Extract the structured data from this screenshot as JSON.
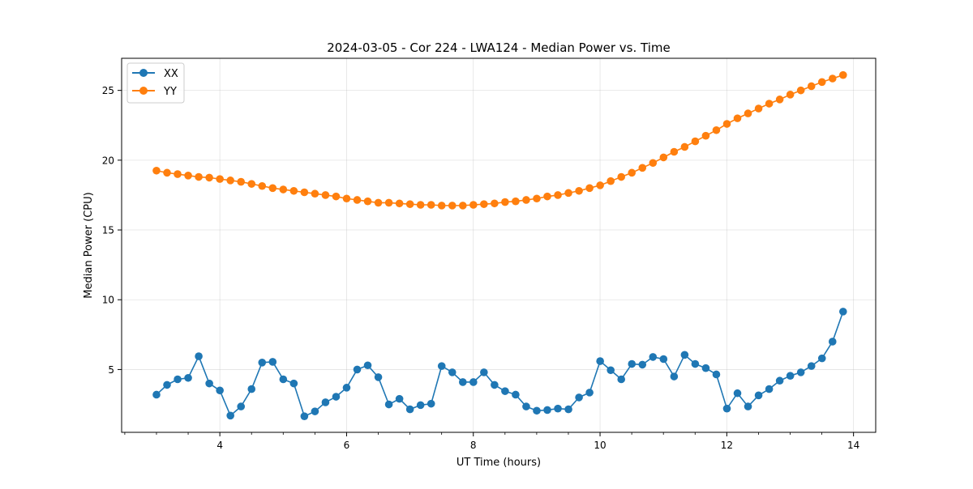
{
  "chart_data": {
    "type": "line",
    "title": "2024-03-05 - Cor 224 - LWA124 - Median Power vs. Time",
    "xlabel": "UT Time (hours)",
    "ylabel": "Median Power (CPU)",
    "xlim": [
      2.45,
      14.35
    ],
    "ylim": [
      0.5,
      27.3
    ],
    "xticks": [
      4,
      6,
      8,
      10,
      12,
      14
    ],
    "xticks_minor": [
      2.5,
      3,
      3.5,
      4.5,
      5,
      5.5,
      6.5,
      7,
      7.5,
      8.5,
      9,
      9.5,
      10.5,
      11,
      11.5,
      12.5,
      13,
      13.5
    ],
    "yticks": [
      5,
      10,
      15,
      20,
      25
    ],
    "grid": true,
    "legend_position": "upper-left",
    "x_start": 3.0,
    "x_step": 0.1667,
    "series": [
      {
        "name": "XX",
        "color": "#1f77b4",
        "values": [
          3.2,
          3.9,
          4.3,
          4.4,
          5.95,
          4.0,
          3.5,
          1.7,
          2.35,
          3.6,
          5.5,
          5.55,
          4.3,
          4.0,
          1.65,
          2.0,
          2.65,
          3.05,
          3.7,
          5.0,
          5.3,
          4.45,
          2.5,
          2.9,
          2.15,
          2.45,
          2.55,
          5.25,
          4.8,
          4.1,
          4.1,
          4.8,
          3.9,
          3.45,
          3.2,
          2.35,
          2.05,
          2.1,
          2.2,
          2.15,
          3.0,
          3.35,
          5.6,
          4.95,
          4.3,
          5.4,
          5.35,
          5.9,
          5.75,
          4.5,
          6.05,
          5.4,
          5.1,
          4.65,
          2.2,
          3.3,
          2.35,
          3.15,
          3.6,
          4.2,
          4.55,
          4.8,
          5.25,
          5.8,
          7.0,
          9.15
        ]
      },
      {
        "name": "YY",
        "color": "#ff7f0e",
        "values": [
          19.25,
          19.1,
          19.0,
          18.9,
          18.8,
          18.75,
          18.65,
          18.55,
          18.45,
          18.3,
          18.15,
          18.0,
          17.9,
          17.8,
          17.7,
          17.6,
          17.5,
          17.4,
          17.25,
          17.15,
          17.05,
          16.95,
          16.95,
          16.9,
          16.85,
          16.8,
          16.8,
          16.75,
          16.75,
          16.75,
          16.8,
          16.85,
          16.9,
          17.0,
          17.05,
          17.15,
          17.25,
          17.4,
          17.5,
          17.65,
          17.8,
          18.0,
          18.2,
          18.5,
          18.8,
          19.1,
          19.45,
          19.8,
          20.2,
          20.6,
          20.95,
          21.35,
          21.75,
          22.15,
          22.6,
          23.0,
          23.35,
          23.7,
          24.05,
          24.35,
          24.7,
          25.0,
          25.3,
          25.6,
          25.85,
          26.1
        ]
      }
    ]
  }
}
